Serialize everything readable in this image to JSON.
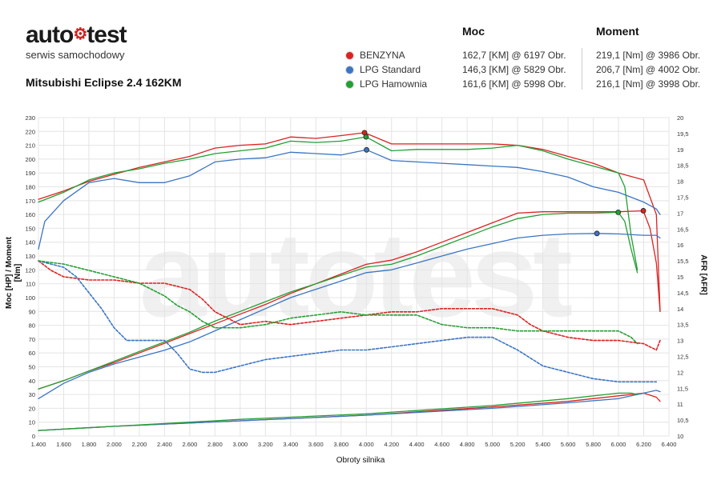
{
  "logo": {
    "main_left": "auto",
    "main_right": "test",
    "subtitle": "serwis samochodowy"
  },
  "car_title": "Mitsubishi Eclipse 2.4 162KM",
  "table": {
    "header_power": "Moc",
    "header_torque": "Moment",
    "rows": [
      {
        "name": "BENZYNA",
        "color": "#dd2222",
        "power": "162,7 [KM] @ 6197 Obr.",
        "torque": "219,1 [Nm] @ 3986 Obr."
      },
      {
        "name": "LPG Standard",
        "color": "#3b75c4",
        "power": "146,3 [KM] @ 5829 Obr.",
        "torque": "206,7 [Nm] @ 4002 Obr."
      },
      {
        "name": "LPG Hamownia",
        "color": "#22a033",
        "power": "161,6 [KM] @ 5998 Obr.",
        "torque": "216,1 [Nm] @ 3998 Obr."
      }
    ]
  },
  "watermark": "autotest",
  "chart_data": {
    "type": "line",
    "xlabel": "Obroty silnika",
    "ylabel_left": "Moc [HP] / Moment [Nm]",
    "ylabel_right": "AFR [AFR]",
    "xlim": [
      1400,
      6400
    ],
    "ylim_left": [
      0,
      230
    ],
    "ylim_right": [
      10,
      20
    ],
    "x_ticks": [
      1400,
      1600,
      1800,
      2000,
      2200,
      2400,
      2600,
      2800,
      3000,
      3200,
      3400,
      3600,
      3800,
      4000,
      4200,
      4400,
      4600,
      4800,
      5000,
      5200,
      5400,
      5600,
      5800,
      6000,
      6200,
      6400
    ],
    "x_tick_labels": [
      "1.400",
      "1.600",
      "1.800",
      "2.000",
      "2.200",
      "2.400",
      "2.600",
      "2.800",
      "3.000",
      "3.200",
      "3.400",
      "3.600",
      "3.800",
      "4.000",
      "4.200",
      "4.400",
      "4.600",
      "4.800",
      "5.000",
      "5.200",
      "5.400",
      "5.600",
      "5.800",
      "6.000",
      "6.200",
      "6.400"
    ],
    "y_left_ticks": [
      0,
      10,
      20,
      30,
      40,
      50,
      60,
      70,
      80,
      90,
      100,
      110,
      120,
      130,
      140,
      150,
      160,
      170,
      180,
      190,
      200,
      210,
      220,
      230
    ],
    "y_right_ticks": [
      10,
      10.5,
      11,
      11.5,
      12,
      12.5,
      13,
      13.5,
      14,
      14.5,
      15,
      15.5,
      16,
      16.5,
      17,
      17.5,
      18,
      18.5,
      19,
      19.5,
      20
    ],
    "y_right_tick_labels": [
      "10",
      "10,5",
      "11",
      "11,5",
      "12",
      "12,5",
      "13",
      "13,5",
      "14",
      "14,5",
      "15",
      "15,5",
      "16",
      "16,5",
      "17",
      "17,5",
      "18",
      "18,5",
      "19",
      "19,5",
      "20"
    ],
    "grid": true,
    "series": [
      {
        "name": "BENZYNA",
        "color": "#dd2222",
        "axis": "left",
        "kind": "torque",
        "dash": false,
        "x": [
          1400,
          1600,
          1800,
          2000,
          2200,
          2400,
          2600,
          2800,
          3000,
          3200,
          3400,
          3600,
          3800,
          3986,
          4200,
          4400,
          4600,
          4800,
          5000,
          5200,
          5400,
          5600,
          5800,
          6000,
          6200,
          6300,
          6330
        ],
        "y": [
          171,
          177,
          184,
          189,
          194,
          198,
          202,
          208,
          210,
          211,
          216,
          215,
          217,
          219.1,
          211,
          211,
          211,
          211,
          211,
          210,
          207,
          202,
          197,
          190,
          185,
          160,
          90
        ]
      },
      {
        "name": "LPG Standard",
        "color": "#3b75c4",
        "axis": "left",
        "kind": "torque",
        "dash": false,
        "x": [
          1400,
          1450,
          1600,
          1800,
          2000,
          2200,
          2400,
          2600,
          2800,
          3000,
          3200,
          3400,
          3600,
          3800,
          4002,
          4200,
          4400,
          4600,
          4800,
          5000,
          5200,
          5400,
          5600,
          5800,
          6000,
          6200,
          6300,
          6330
        ],
        "y": [
          135,
          155,
          170,
          183,
          186,
          183,
          183,
          188,
          198,
          200,
          201,
          205,
          204,
          203,
          206.7,
          199,
          198,
          197,
          196,
          195,
          194,
          191,
          187,
          180,
          176,
          169,
          164,
          160
        ]
      },
      {
        "name": "LPG Hamownia",
        "color": "#22a033",
        "axis": "left",
        "kind": "torque",
        "dash": false,
        "x": [
          1400,
          1600,
          1800,
          2000,
          2200,
          2400,
          2600,
          2800,
          3000,
          3200,
          3400,
          3600,
          3800,
          3998,
          4200,
          4400,
          4600,
          4800,
          5000,
          5200,
          5400,
          5600,
          5800,
          6000,
          6050,
          6100,
          6150
        ],
        "y": [
          169,
          176,
          185,
          190,
          193,
          197,
          200,
          204,
          206,
          208,
          213,
          212,
          213,
          216.1,
          206,
          207,
          207,
          207,
          208,
          210,
          206,
          200,
          195,
          190,
          180,
          145,
          120
        ]
      },
      {
        "name": "BENZYNA",
        "color": "#dd2222",
        "axis": "left",
        "kind": "power",
        "dash": false,
        "x": [
          1400,
          1600,
          1800,
          2000,
          2200,
          2400,
          2600,
          2800,
          3000,
          3200,
          3400,
          3600,
          3800,
          4000,
          4200,
          4400,
          4600,
          4800,
          5000,
          5200,
          5400,
          5600,
          5800,
          6000,
          6197,
          6250,
          6300,
          6330
        ],
        "y": [
          34,
          40,
          47,
          53,
          60,
          67,
          74,
          81,
          88,
          95,
          103,
          110,
          117,
          124,
          127,
          133,
          140,
          147,
          154,
          161,
          162,
          162,
          162,
          162,
          162.7,
          150,
          125,
          90
        ]
      },
      {
        "name": "LPG Standard",
        "color": "#3b75c4",
        "axis": "left",
        "kind": "power",
        "dash": false,
        "x": [
          1400,
          1600,
          1800,
          2000,
          2200,
          2400,
          2600,
          2800,
          3000,
          3200,
          3400,
          3600,
          3800,
          4000,
          4200,
          4400,
          4600,
          4800,
          5000,
          5200,
          5400,
          5600,
          5829,
          6000,
          6200,
          6300,
          6330
        ],
        "y": [
          27,
          38,
          46,
          52,
          57,
          62,
          68,
          76,
          84,
          92,
          100,
          106,
          112,
          118,
          120,
          125,
          130,
          135,
          139,
          143,
          145,
          146,
          146.3,
          146,
          145,
          145,
          143
        ]
      },
      {
        "name": "LPG Hamownia",
        "color": "#22a033",
        "axis": "left",
        "kind": "power",
        "dash": false,
        "x": [
          1400,
          1600,
          1800,
          2000,
          2200,
          2400,
          2600,
          2800,
          3000,
          3200,
          3400,
          3600,
          3800,
          4000,
          4200,
          4400,
          4600,
          4800,
          5000,
          5200,
          5400,
          5600,
          5800,
          5998,
          6050,
          6100,
          6150
        ],
        "y": [
          34,
          40,
          47,
          54,
          61,
          68,
          75,
          83,
          90,
          97,
          104,
          110,
          116,
          122,
          124,
          130,
          137,
          144,
          151,
          157,
          160,
          161,
          161,
          161.6,
          155,
          135,
          118
        ]
      },
      {
        "name": "BENZYNA",
        "color": "#dd2222",
        "axis": "right",
        "kind": "afr",
        "dash": true,
        "x": [
          1400,
          1500,
          1600,
          1800,
          2000,
          2200,
          2400,
          2600,
          2700,
          2800,
          3000,
          3200,
          3400,
          3600,
          3800,
          4000,
          4200,
          4400,
          4600,
          4800,
          5000,
          5200,
          5300,
          5400,
          5600,
          5800,
          6000,
          6200,
          6250,
          6300,
          6330
        ],
        "y": [
          15.5,
          15.2,
          15.0,
          14.9,
          14.9,
          14.8,
          14.8,
          14.6,
          14.3,
          13.9,
          13.5,
          13.6,
          13.5,
          13.6,
          13.7,
          13.8,
          13.9,
          13.9,
          14.0,
          14.0,
          14.0,
          13.8,
          13.5,
          13.3,
          13.1,
          13.0,
          13.0,
          12.9,
          12.8,
          12.7,
          13.0
        ]
      },
      {
        "name": "LPG Standard",
        "color": "#3b75c4",
        "axis": "right",
        "kind": "afr",
        "dash": true,
        "x": [
          1400,
          1600,
          1700,
          1800,
          1900,
          2000,
          2100,
          2200,
          2300,
          2400,
          2500,
          2600,
          2700,
          2800,
          2900,
          3000,
          3200,
          3400,
          3600,
          3800,
          4000,
          4200,
          4400,
          4600,
          4800,
          5000,
          5200,
          5400,
          5600,
          5800,
          6000,
          6200,
          6300
        ],
        "y": [
          15.5,
          15.3,
          15.0,
          14.5,
          14.0,
          13.4,
          13.0,
          13.0,
          13.0,
          13.0,
          12.6,
          12.1,
          12.0,
          12.0,
          12.1,
          12.2,
          12.4,
          12.5,
          12.6,
          12.7,
          12.7,
          12.8,
          12.9,
          13.0,
          13.1,
          13.1,
          12.7,
          12.2,
          12.0,
          11.8,
          11.7,
          11.7,
          11.7
        ]
      },
      {
        "name": "LPG Hamownia",
        "color": "#22a033",
        "axis": "right",
        "kind": "afr",
        "dash": true,
        "x": [
          1400,
          1600,
          1800,
          2000,
          2200,
          2400,
          2500,
          2600,
          2700,
          2800,
          3000,
          3200,
          3400,
          3600,
          3800,
          4000,
          4200,
          4400,
          4600,
          4800,
          5000,
          5200,
          5400,
          5600,
          5800,
          6000,
          6100,
          6150
        ],
        "y": [
          15.5,
          15.4,
          15.2,
          15.0,
          14.8,
          14.4,
          14.1,
          13.9,
          13.6,
          13.4,
          13.4,
          13.5,
          13.7,
          13.8,
          13.9,
          13.8,
          13.8,
          13.8,
          13.5,
          13.4,
          13.4,
          13.3,
          13.3,
          13.3,
          13.3,
          13.3,
          13.1,
          12.9
        ]
      },
      {
        "name": "BENZYNA",
        "color": "#dd2222",
        "axis": "left",
        "kind": "loss",
        "dash": false,
        "x": [
          1400,
          2000,
          3000,
          4000,
          5000,
          5600,
          6000,
          6200,
          6300,
          6330
        ],
        "y": [
          4,
          7,
          11,
          15,
          21,
          25,
          29,
          31,
          28,
          25
        ]
      },
      {
        "name": "LPG Standard",
        "color": "#3b75c4",
        "axis": "left",
        "kind": "loss",
        "dash": false,
        "x": [
          1400,
          2000,
          3000,
          4000,
          5000,
          5600,
          6000,
          6200,
          6300,
          6330
        ],
        "y": [
          4,
          7,
          11,
          15,
          20,
          24,
          27,
          31,
          33,
          32
        ]
      },
      {
        "name": "LPG Hamownia",
        "color": "#22a033",
        "axis": "left",
        "kind": "loss",
        "dash": false,
        "x": [
          1400,
          2000,
          3000,
          4000,
          5000,
          5600,
          6000,
          6100,
          6150
        ],
        "y": [
          4,
          7,
          12,
          16,
          22,
          27,
          31,
          31,
          30
        ]
      }
    ],
    "markers": [
      {
        "series": "BENZYNA",
        "color": "#dd2222",
        "x": 3986,
        "y": 219.1
      },
      {
        "series": "LPG Standard",
        "color": "#3b75c4",
        "x": 4002,
        "y": 206.7
      },
      {
        "series": "LPG Hamownia",
        "color": "#22a033",
        "x": 3998,
        "y": 216.1
      },
      {
        "series": "BENZYNA",
        "color": "#dd2222",
        "x": 6197,
        "y": 162.7
      },
      {
        "series": "LPG Standard",
        "color": "#3b75c4",
        "x": 5829,
        "y": 146.3
      },
      {
        "series": "LPG Hamownia",
        "color": "#22a033",
        "x": 5998,
        "y": 161.6
      }
    ]
  }
}
